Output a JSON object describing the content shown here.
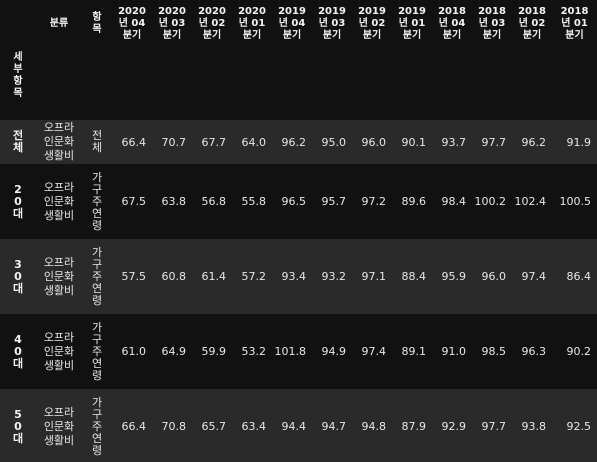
{
  "table": {
    "column_header_category": "분류",
    "column_header_item": "항목",
    "index_name": "세부항목",
    "periods": [
      "2020\n년 04\n분기",
      "2020\n년 03\n분기",
      "2020\n년 02\n분기",
      "2020\n년 01\n분기",
      "2019\n년 04\n분기",
      "2019\n년 03\n분기",
      "2019\n년 02\n분기",
      "2019\n년 01\n분기",
      "2018\n년 04\n분기",
      "2018\n년 03\n분기",
      "2018\n년 02\n분기",
      "2018\n년 01\n분기"
    ],
    "rows": [
      {
        "index": "전체",
        "category": "오프라인문화생활비",
        "item": "전체",
        "values": [
          "66.4",
          "70.7",
          "67.7",
          "64.0",
          "96.2",
          "95.0",
          "96.0",
          "90.1",
          "93.7",
          "97.7",
          "96.2",
          "91.9"
        ]
      },
      {
        "index": "20대",
        "category": "오프라인문화생활비",
        "item": "가구주연령",
        "values": [
          "67.5",
          "63.8",
          "56.8",
          "55.8",
          "96.5",
          "95.7",
          "97.2",
          "89.6",
          "98.4",
          "100.2",
          "102.4",
          "100.5"
        ]
      },
      {
        "index": "30대",
        "category": "오프라인문화생활비",
        "item": "가구주연령",
        "values": [
          "57.5",
          "60.8",
          "61.4",
          "57.2",
          "93.4",
          "93.2",
          "97.1",
          "88.4",
          "95.9",
          "96.0",
          "97.4",
          "86.4"
        ]
      },
      {
        "index": "40대",
        "category": "오프라인문화생활비",
        "item": "가구주연령",
        "values": [
          "61.0",
          "64.9",
          "59.9",
          "53.2",
          "101.8",
          "94.9",
          "97.4",
          "89.1",
          "91.0",
          "98.5",
          "96.3",
          "90.2"
        ]
      },
      {
        "index": "50대",
        "category": "오프라인문화생활비",
        "item": "가구주연령",
        "values": [
          "66.4",
          "70.8",
          "65.7",
          "63.4",
          "94.4",
          "94.7",
          "94.8",
          "87.9",
          "92.9",
          "97.7",
          "93.8",
          "92.5"
        ]
      }
    ]
  }
}
